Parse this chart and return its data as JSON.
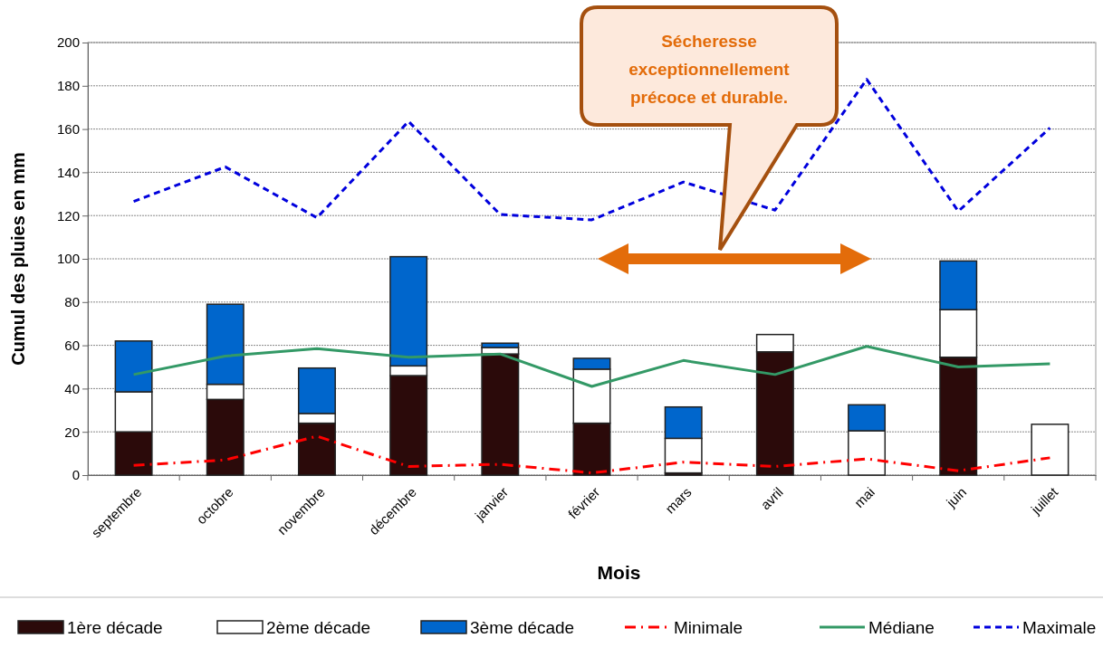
{
  "chart_data": {
    "type": "bar",
    "stacked": true,
    "xlabel": "Mois",
    "ylabel": "Cumul des pluies en mm",
    "categories": [
      "septembre",
      "octobre",
      "novembre",
      "décembre",
      "janvier",
      "février",
      "mars",
      "avril",
      "mai",
      "juin",
      "juillet"
    ],
    "series": [
      {
        "name": "1ère décade",
        "color": "#2b0a0a",
        "values": [
          20,
          35,
          24,
          46,
          56,
          24,
          1,
          57,
          0,
          54.5,
          0
        ]
      },
      {
        "name": "2ème décade",
        "color": "#ffffff",
        "values": [
          18.5,
          7,
          4.5,
          4.5,
          3,
          25,
          16,
          8,
          20.5,
          22,
          23.5
        ]
      },
      {
        "name": "3ème décade",
        "color": "#0066cc",
        "values": [
          23.5,
          37,
          21,
          50.5,
          2,
          5,
          14.5,
          0,
          12,
          22.5,
          0
        ]
      },
      {
        "name": "Minimale",
        "type": "line",
        "line_style": "dashdot",
        "color": "#ff0000",
        "values": [
          4.5,
          7,
          18,
          4,
          5,
          1,
          6,
          4,
          7.5,
          2,
          8
        ]
      },
      {
        "name": "Médiane",
        "type": "line",
        "line_style": "solid",
        "color": "#339966",
        "values": [
          46.5,
          55,
          58.5,
          54.5,
          56,
          41,
          53,
          46.5,
          59.5,
          50,
          51.5
        ]
      },
      {
        "name": "Maximale",
        "type": "line",
        "line_style": "dashed",
        "color": "#0000dd",
        "values": [
          126.5,
          142.5,
          119,
          163.5,
          120.5,
          118,
          135.5,
          122.5,
          183,
          122,
          160.5
        ]
      }
    ],
    "ylim": [
      0,
      200
    ],
    "yticks": [
      0,
      20,
      40,
      60,
      80,
      100,
      120,
      140,
      160,
      180,
      200
    ],
    "grid": "y",
    "legend": "bottom",
    "marker": "none",
    "annotations": [
      "Sécheresse exceptionnellement précoce et durable."
    ]
  }
}
